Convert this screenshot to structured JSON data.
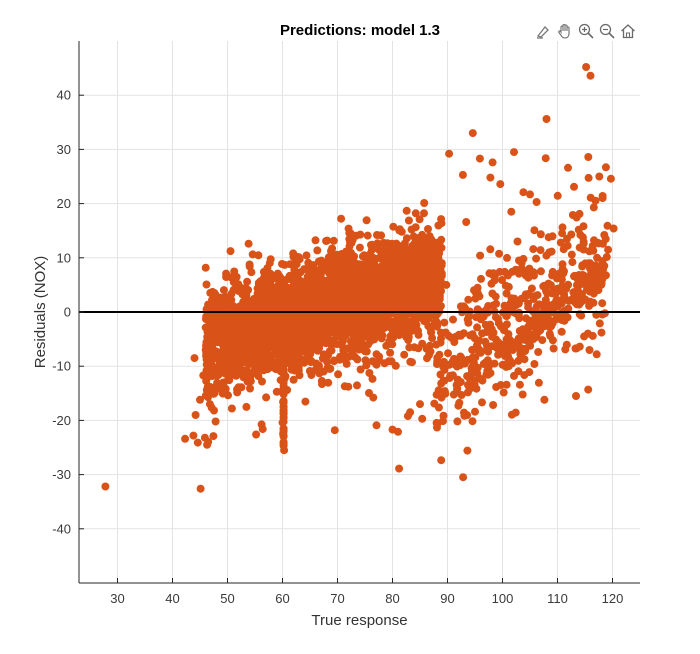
{
  "chart_data": {
    "type": "scatter",
    "title": "Predictions: model 1.3",
    "xlabel": "True response",
    "ylabel": "Residuals (NOX)",
    "xlim": [
      23,
      125
    ],
    "ylim": [
      -50,
      50
    ],
    "xticks": [
      30,
      40,
      50,
      60,
      70,
      80,
      90,
      100,
      110,
      120
    ],
    "yticks": [
      -40,
      -30,
      -20,
      -10,
      0,
      10,
      20,
      30,
      40
    ],
    "grid": true,
    "zero_line": 0,
    "series": [
      {
        "marker_color": "#D95319",
        "x": [
          27.8,
          45.1,
          42.3,
          43.8,
          44.6,
          45.9,
          46.3,
          44.2,
          45.0,
          46.8,
          47.5,
          48.2,
          44.0,
          45.6,
          47.1,
          49.0,
          52.0,
          55.2,
          56.4,
          50.8,
          60.1,
          60.2,
          60.3,
          60.0,
          60.2,
          60.1,
          60.2,
          69.5,
          77.1,
          81.2,
          76.5,
          80.0,
          82.8,
          85.0,
          89.4,
          94.6,
          90.3,
          92.8,
          95.9,
          98.2,
          99.6,
          102.1,
          103.8,
          105.0,
          106.2,
          108.0,
          101.6,
          97.8,
          93.4,
          111.9,
          113.0,
          115.2,
          116.0,
          115.6,
          117.6,
          118.8,
          119.7,
          119.1,
          120.2,
          114.0,
          112.5,
          110.6,
          118.5,
          119.2,
          116.9,
          114.8,
          113.6,
          109.8,
          107.5,
          104.6,
          102.3,
          99.2,
          96.6,
          94.2,
          91.8,
          89.5,
          87.6,
          85.4,
          83.2,
          81.0,
          88.8,
          91.0,
          93.2,
          95.8,
          98.0,
          100.4,
          103.0,
          105.6,
          108.4,
          110.9,
          112.8,
          116.6,
          118.2,
          107.9,
          104.9,
          101.2,
          97.4,
          96.1,
          92.4,
          86.9
        ],
        "y": [
          -32.2,
          -32.6,
          -23.4,
          -22.8,
          -24.1,
          -23.2,
          -24.5,
          -19.0,
          -16.2,
          -17.0,
          -15.1,
          -13.4,
          -8.5,
          -11.7,
          -10.4,
          -8.1,
          -13.9,
          -22.6,
          -21.6,
          -17.8,
          -22.5,
          -24.0,
          -25.5,
          -20.4,
          -18.6,
          -16.6,
          -14.2,
          -21.8,
          -20.9,
          -28.9,
          -15.8,
          -21.7,
          -19.2,
          -17.0,
          -12.7,
          33.0,
          29.2,
          25.3,
          28.3,
          27.6,
          23.6,
          29.5,
          22.1,
          21.7,
          20.3,
          35.6,
          18.5,
          24.8,
          16.6,
          26.6,
          23.1,
          45.2,
          43.6,
          28.6,
          25.0,
          26.7,
          24.6,
          15.9,
          15.4,
          18.1,
          14.3,
          12.8,
          14.2,
          11.5,
          8.6,
          6.7,
          3.8,
          2.2,
          -0.9,
          -3.3,
          -5.6,
          -7.9,
          -9.6,
          -11.8,
          -13.3,
          -14.6,
          -16.9,
          -19.7,
          -18.5,
          -22.1,
          -3.8,
          -1.4,
          0.7,
          2.9,
          5.2,
          7.4,
          9.5,
          11.6,
          13.8,
          15.6,
          17.9,
          19.3,
          21.4,
          3.9,
          -1.6,
          -6.2,
          1.1,
          6.1,
          -4.4,
          -7.3
        ]
      }
    ]
  },
  "toolbar": {
    "icons": [
      "brush-icon",
      "pan-icon",
      "zoom-in-icon",
      "zoom-out-icon",
      "home-icon"
    ]
  }
}
